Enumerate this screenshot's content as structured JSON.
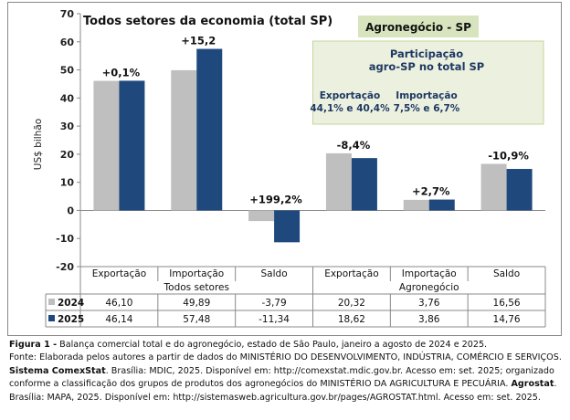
{
  "chart_data": {
    "type": "bar",
    "title": "Todos setores da economia (total SP)",
    "subtitle": "Agronegócio - SP",
    "ylabel": "US$ bilhão",
    "ylim": [
      -20,
      70
    ],
    "yticks": [
      -20,
      -10,
      0,
      10,
      20,
      30,
      40,
      50,
      60,
      70
    ],
    "groups": [
      {
        "name": "Todos setores",
        "categories": [
          "Exportação",
          "Importação",
          "Saldo"
        ]
      },
      {
        "name": "Agronegócio",
        "categories": [
          "Exportação",
          "Importação",
          "Saldo"
        ]
      }
    ],
    "series": [
      {
        "name": "2024",
        "color": "#BFBFBF",
        "values": [
          46.1,
          49.89,
          -3.79,
          20.32,
          3.76,
          16.56
        ],
        "display": [
          "46,10",
          "49,89",
          "-3,79",
          "20,32",
          "3,76",
          "16,56"
        ]
      },
      {
        "name": "2025",
        "color": "#1F497D",
        "values": [
          46.14,
          57.48,
          -11.34,
          18.62,
          3.86,
          14.76
        ],
        "display": [
          "46,14",
          "57,48",
          "-11,34",
          "18,62",
          "3,86",
          "14,76"
        ]
      }
    ],
    "changes": [
      "+0,1%",
      "+15,2",
      "+199,2%",
      "-8,4%",
      "+2,7%",
      "-10,9%"
    ],
    "participation": {
      "title_line1": "Participação",
      "title_line2": "agro-SP no total SP",
      "export_label": "Exportação",
      "export_value": "44,1% e 40,4%",
      "import_label": "Importação",
      "import_value": "7,5% e 6,7%"
    },
    "legend": "table-left"
  },
  "caption": {
    "fig_label": "Figura 1 -",
    "fig_text": " Balança comercial total e do agronegócio, estado de São Paulo, janeiro a agosto de 2024 e 2025.",
    "line2": "Fonte: Elaborada pelos autores a partir de dados do MINISTÉRIO DO DESENVOLVIMENTO, INDÚSTRIA, COMÉRCIO E SERVIÇOS.",
    "line3_bold": "Sistema ComexStat",
    "line3_rest": ". Brasília: MDIC, 2025. Disponível em: http://comexstat.mdic.gov.br. Acesso em: set. 2025; organizado",
    "line4_start": "conforme a classificação dos grupos de produtos dos agronegócios do MINISTÉRIO DA AGRICULTURA E PECUÁRIA.",
    "line4_bold": "Agrostat",
    "line4_end": ".",
    "line5": "Brasília: MAPA, 2025. Disponível em: http://sistemasweb.agricultura.gov.br/pages/AGROSTAT.html. Acesso em: set. 2025."
  }
}
